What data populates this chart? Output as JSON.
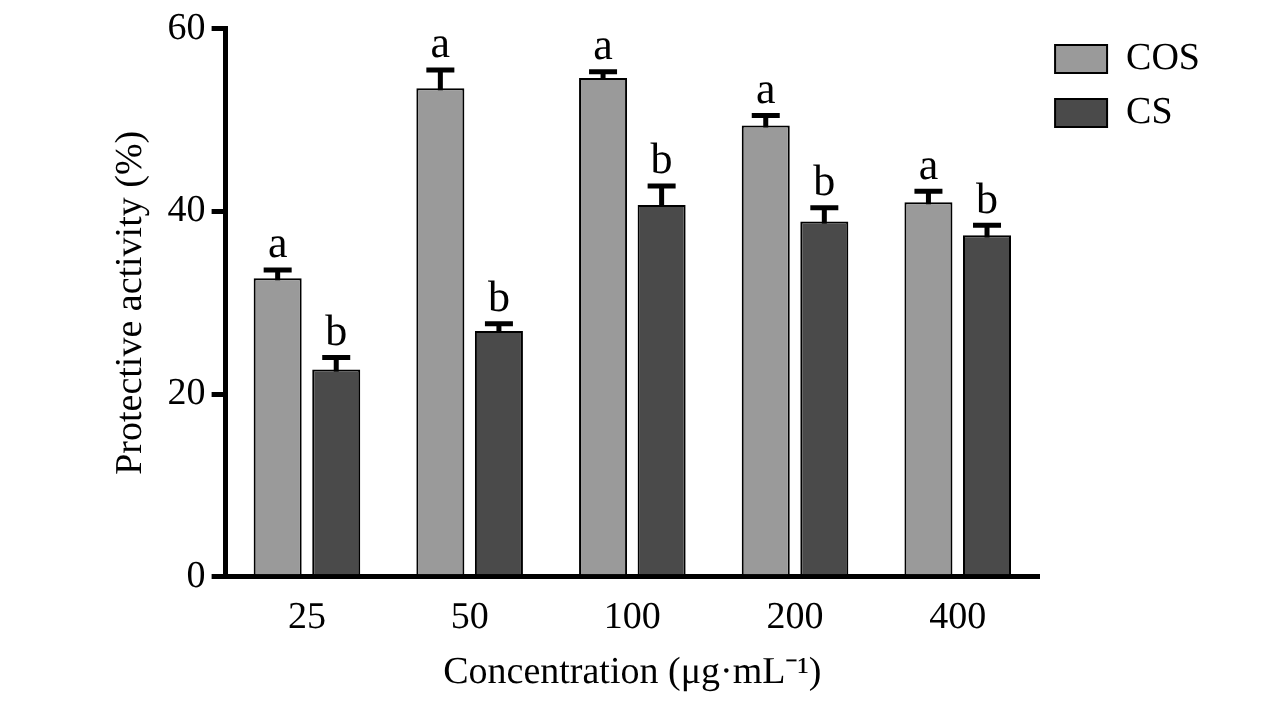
{
  "chart_data": {
    "type": "bar",
    "xlabel": "Concentration (μg·mL⁻¹)",
    "ylabel": "Protective activity (%)",
    "categories": [
      "25",
      "50",
      "100",
      "200",
      "400"
    ],
    "series": [
      {
        "name": "COS",
        "color": "#9a9a9a",
        "values": [
          32.7,
          53.5,
          54.6,
          49.4,
          41.0
        ],
        "errors": [
          0.9,
          2.0,
          0.7,
          1.1,
          1.2
        ],
        "value_labels": [
          "a",
          "a",
          "a",
          "a",
          "a"
        ]
      },
      {
        "name": "CS",
        "color": "#4a4a4a",
        "values": [
          22.7,
          26.9,
          40.7,
          38.9,
          37.4
        ],
        "errors": [
          1.3,
          0.8,
          2.1,
          1.5,
          1.1
        ],
        "value_labels": [
          "b",
          "b",
          "b",
          "b",
          "b"
        ]
      }
    ],
    "ylim": [
      0,
      60
    ],
    "yticks": [
      0,
      20,
      40,
      60
    ],
    "grid": false,
    "legend": "top right"
  }
}
